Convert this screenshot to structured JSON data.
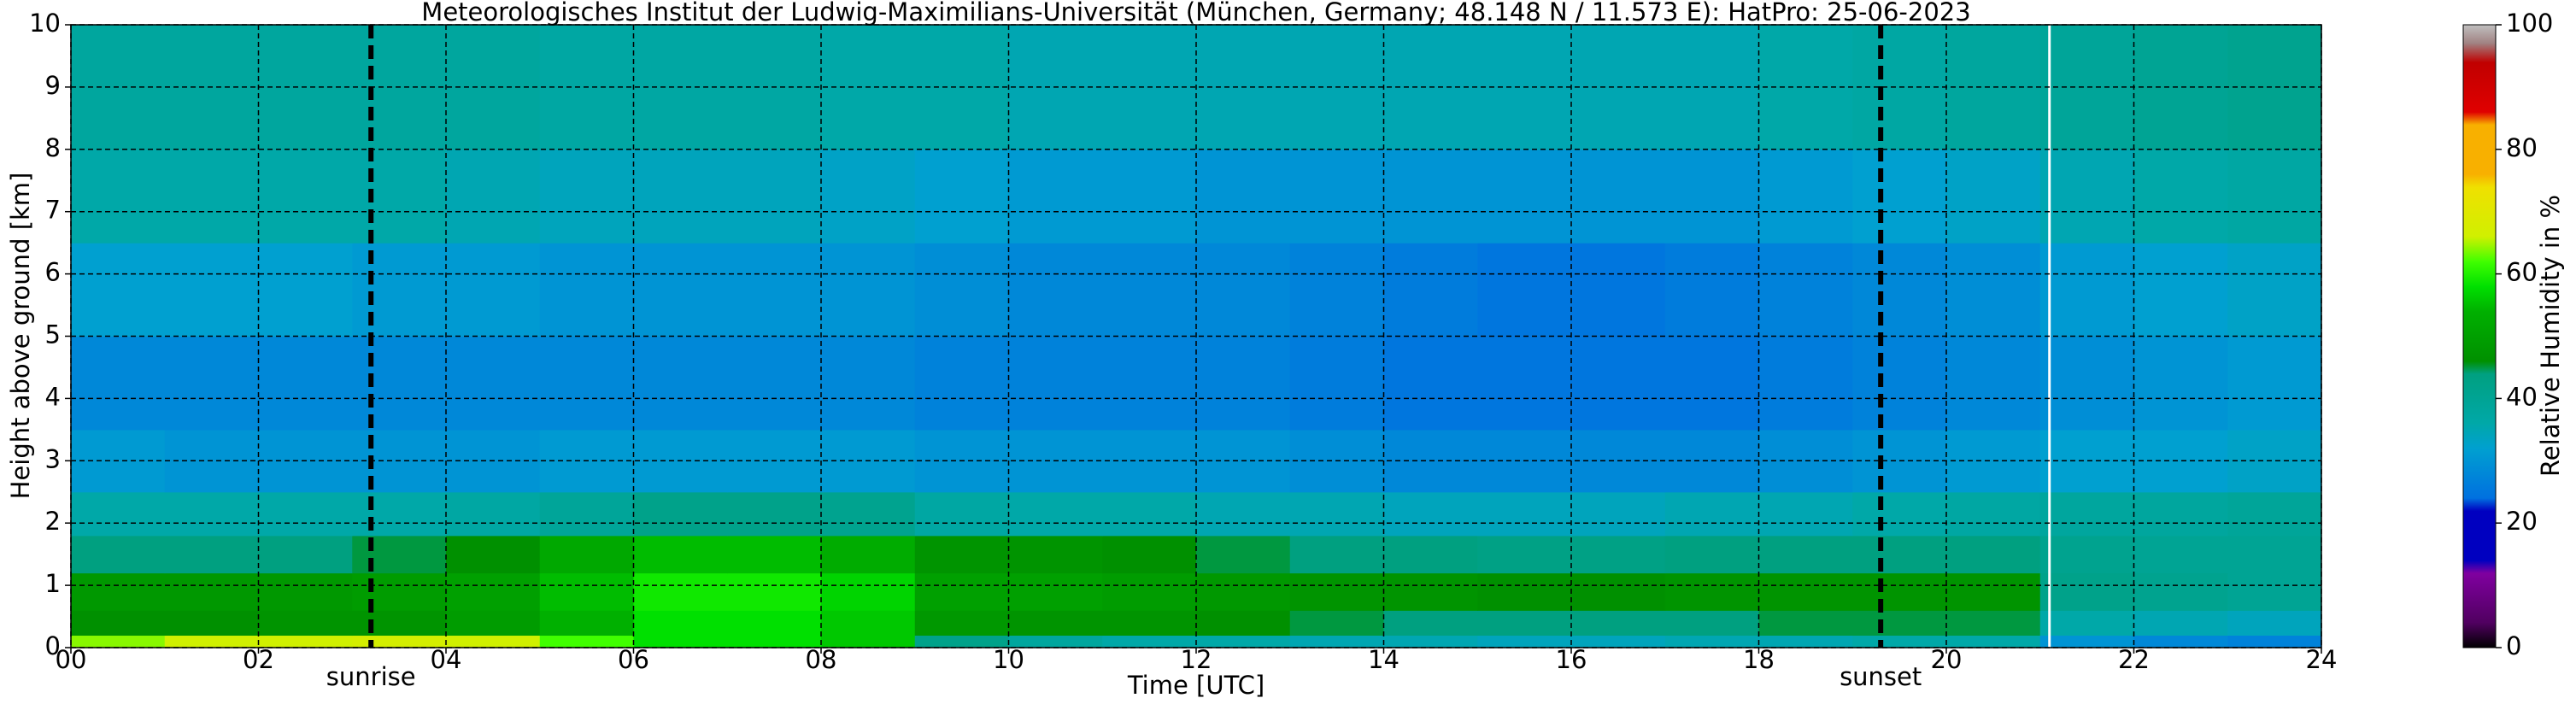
{
  "chart_data": {
    "type": "heatmap",
    "title": "Meteorologisches Institut der Ludwig-Maximilians-Universität (München, Germany; 48.148 N / 11.573 E):    HatPro: 25-06-2023",
    "x_label": "Time [UTC]",
    "y_label": "Height above ground [km]",
    "colorbar_label": "Relative Humidity in %",
    "xlim": [
      0,
      24
    ],
    "ylim": [
      0,
      10
    ],
    "xticks": [
      {
        "value": 0,
        "label": "00"
      },
      {
        "value": 2,
        "label": "02"
      },
      {
        "value": 4,
        "label": "04"
      },
      {
        "value": 6,
        "label": "06"
      },
      {
        "value": 8,
        "label": "08"
      },
      {
        "value": 10,
        "label": "10"
      },
      {
        "value": 12,
        "label": "12"
      },
      {
        "value": 14,
        "label": "14"
      },
      {
        "value": 16,
        "label": "16"
      },
      {
        "value": 18,
        "label": "18"
      },
      {
        "value": 20,
        "label": "20"
      },
      {
        "value": 22,
        "label": "22"
      },
      {
        "value": 24,
        "label": "24"
      }
    ],
    "yticks": [
      0,
      1,
      2,
      3,
      4,
      5,
      6,
      7,
      8,
      9,
      10
    ],
    "grid": true,
    "x_edges": [
      0,
      1,
      2,
      3,
      4,
      5,
      6,
      7,
      8,
      9,
      10,
      11,
      12,
      13,
      14,
      15,
      16,
      17,
      18,
      19,
      20,
      21,
      22,
      23,
      24
    ],
    "y_edges": [
      0,
      0.2,
      0.6,
      1.2,
      1.8,
      2.5,
      3.5,
      5,
      6.5,
      8,
      10
    ],
    "z": [
      [
        64,
        66,
        66,
        67,
        66,
        62,
        58,
        58,
        56,
        42,
        38,
        36,
        36,
        35,
        35,
        34,
        34,
        35,
        35,
        36,
        36,
        30,
        28,
        27
      ],
      [
        46,
        46,
        47,
        47,
        49,
        54,
        58,
        58,
        56,
        48,
        47,
        47,
        46,
        45,
        44,
        44,
        44,
        44,
        45,
        45,
        45,
        36,
        35,
        34
      ],
      [
        48,
        48,
        48,
        49,
        50,
        55,
        59,
        59,
        57,
        50,
        50,
        49,
        48,
        47,
        47,
        46,
        46,
        47,
        47,
        47,
        47,
        42,
        41,
        40
      ],
      [
        44,
        44,
        44,
        45,
        46,
        52,
        55,
        55,
        53,
        47,
        47,
        46,
        45,
        44,
        44,
        43,
        43,
        44,
        44,
        44,
        44,
        41,
        40,
        40
      ],
      [
        36,
        36,
        36,
        36,
        37,
        39,
        42,
        42,
        41,
        37,
        36,
        36,
        35,
        35,
        34,
        34,
        34,
        35,
        35,
        36,
        37,
        38,
        38,
        39
      ],
      [
        31,
        30,
        30,
        30,
        30,
        31,
        31,
        31,
        31,
        30,
        30,
        30,
        30,
        29,
        28,
        28,
        28,
        28,
        29,
        30,
        31,
        32,
        32,
        33
      ],
      [
        28,
        28,
        28,
        28,
        28,
        28,
        28,
        28,
        28,
        27,
        27,
        27,
        27,
        26,
        25,
        25,
        25,
        25,
        26,
        27,
        28,
        29,
        30,
        31
      ],
      [
        32,
        32,
        32,
        31,
        31,
        30,
        30,
        30,
        30,
        29,
        28,
        28,
        28,
        27,
        26,
        25,
        25,
        26,
        27,
        28,
        29,
        31,
        32,
        33
      ],
      [
        36,
        36,
        36,
        36,
        35,
        34,
        34,
        34,
        33,
        32,
        31,
        31,
        30,
        30,
        30,
        30,
        30,
        30,
        31,
        32,
        33,
        35,
        36,
        37
      ],
      [
        38,
        38,
        38,
        38,
        38,
        37,
        37,
        37,
        36,
        36,
        35,
        35,
        35,
        35,
        35,
        35,
        35,
        35,
        36,
        37,
        38,
        39,
        40,
        41
      ]
    ],
    "missing_x": 21.1,
    "annotations": [
      {
        "x": 3.2,
        "label": "sunrise"
      },
      {
        "x": 19.3,
        "label": "sunset"
      }
    ],
    "colorscale": [
      [
        0,
        "#000000"
      ],
      [
        4,
        "#500060"
      ],
      [
        12,
        "#8000a0"
      ],
      [
        14,
        "#0000c0"
      ],
      [
        22,
        "#0000c0"
      ],
      [
        24,
        "#0070e0"
      ],
      [
        32,
        "#00a0d0"
      ],
      [
        36,
        "#00a8a8"
      ],
      [
        44,
        "#00a080"
      ],
      [
        46,
        "#009000"
      ],
      [
        54,
        "#00b000"
      ],
      [
        58,
        "#00e000"
      ],
      [
        62,
        "#40ff00"
      ],
      [
        66,
        "#d0f000"
      ],
      [
        74,
        "#f0e000"
      ],
      [
        76,
        "#f8b000"
      ],
      [
        84,
        "#f8b000"
      ],
      [
        86,
        "#e00000"
      ],
      [
        94,
        "#c00000"
      ],
      [
        97,
        "#a08080"
      ],
      [
        100,
        "#c0c0c0"
      ]
    ],
    "colorbar_ticks": [
      0,
      20,
      40,
      60,
      80,
      100
    ]
  }
}
